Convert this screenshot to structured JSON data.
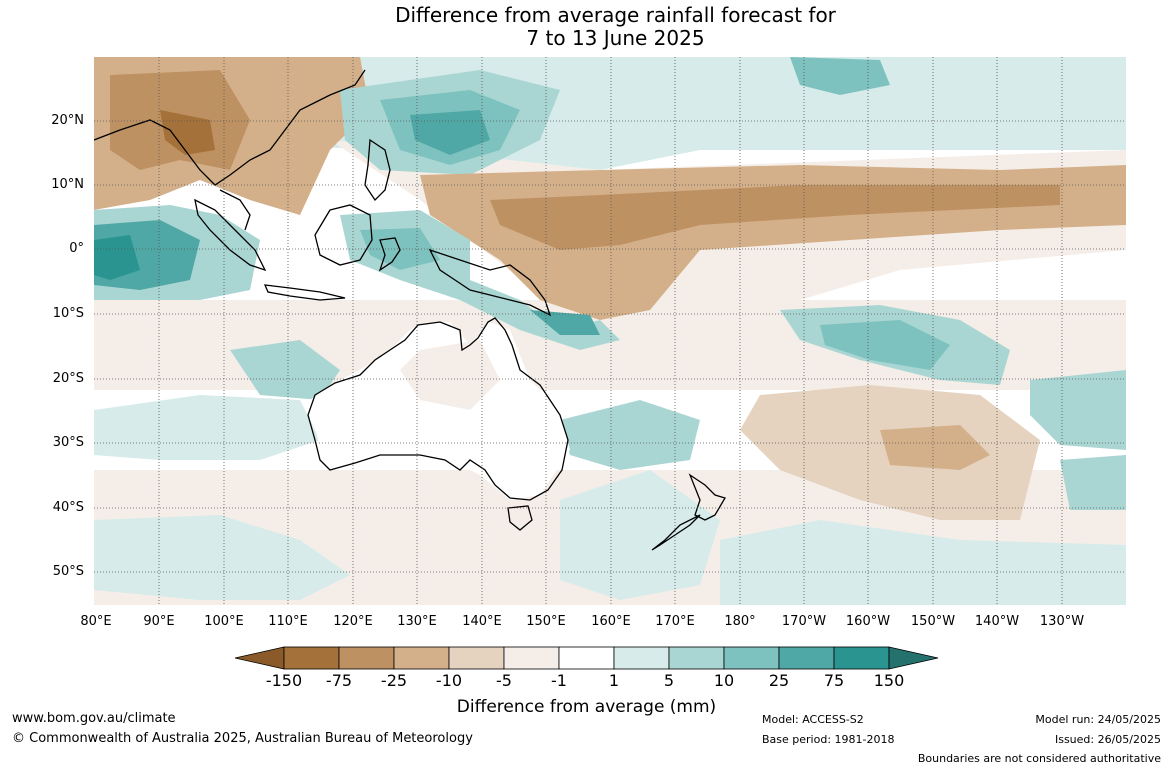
{
  "title": {
    "line1": "Difference from average rainfall forecast for",
    "line2": "7 to 13 June 2025"
  },
  "map": {
    "latitude_labels": [
      "20°N",
      "10°N",
      "0°",
      "10°S",
      "20°S",
      "30°S",
      "40°S",
      "50°S"
    ],
    "longitude_labels": [
      "80°E",
      "90°E",
      "100°E",
      "110°E",
      "120°E",
      "130°E",
      "140°E",
      "150°E",
      "160°E",
      "170°E",
      "180°",
      "170°W",
      "160°W",
      "150°W",
      "140°W",
      "130°W"
    ]
  },
  "colorbar": {
    "labels": [
      "-150",
      "-75",
      "-25",
      "-10",
      "-5",
      "-1",
      "1",
      "5",
      "10",
      "25",
      "75",
      "150"
    ],
    "colors": [
      "#a5713a",
      "#be9163",
      "#d4b08a",
      "#e5d3c0",
      "#f5eee8",
      "#ffffff",
      "#d6ebea",
      "#a9d6d3",
      "#7dc2be",
      "#4fa8a5",
      "#2a9490",
      "#24716e"
    ],
    "title": "Difference from average (mm)"
  },
  "footer": {
    "website": "www.bom.gov.au/climate",
    "copyright": "© Commonwealth of Australia 2025, Australian Bureau of Meteorology",
    "model": "Model: ACCESS-S2",
    "base_period": "Base period: 1981-2018",
    "model_run": "Model run: 24/05/2025",
    "issued": "Issued: 26/05/2025",
    "disclaimer": "Boundaries are not considered authoritative"
  }
}
